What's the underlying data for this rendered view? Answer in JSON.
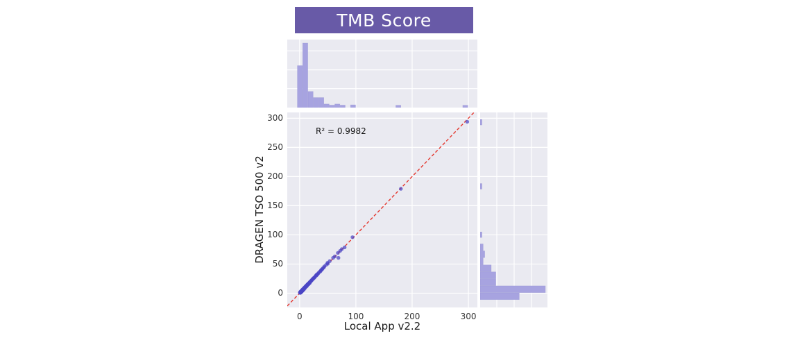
{
  "page": {
    "background": "#ffffff"
  },
  "chart_data": {
    "type": "scatter",
    "variant": "jointplot-with-marginal-histograms",
    "title": "TMB Score",
    "xlabel": "Local App v2.2",
    "ylabel": "DRAGEN TSO 500 v2",
    "annotation": "R² = 0.9982",
    "xlim": [
      -22,
      316
    ],
    "ylim": [
      -24.5,
      310
    ],
    "xticks": [
      0,
      100,
      200,
      300
    ],
    "yticks": [
      0,
      50,
      100,
      150,
      200,
      250,
      300
    ],
    "grid": true,
    "legend": "none",
    "colors": {
      "banner_bg": "#685aa7",
      "banner_text": "#ffffff",
      "panel_bg": "#eaeaf1",
      "gridline": "#ffffff",
      "bar": "#a7a3e0",
      "bar_edge": "#8f8bd0",
      "point": "#4b45c5",
      "identity_line": "#e4372e"
    },
    "identity_line": {
      "style": "dashed",
      "color": "#e4372e",
      "from": -22,
      "to": 312
    },
    "points": [
      [
        298,
        294
      ],
      [
        180,
        179
      ],
      [
        94,
        96
      ],
      [
        80,
        78.5
      ],
      [
        75,
        75.5
      ],
      [
        72,
        72.5
      ],
      [
        68,
        69
      ],
      [
        69,
        60.5
      ],
      [
        62.5,
        63
      ],
      [
        59.5,
        60.5
      ],
      [
        53.5,
        55
      ],
      [
        49.5,
        52
      ],
      [
        50,
        50.5
      ],
      [
        47,
        48.5
      ],
      [
        44,
        46
      ],
      [
        43,
        44
      ],
      [
        41,
        42.5
      ],
      [
        40,
        41
      ],
      [
        39,
        40
      ],
      [
        38,
        39.5
      ],
      [
        37,
        37.5
      ],
      [
        36,
        37
      ],
      [
        34,
        35
      ],
      [
        33,
        34
      ],
      [
        32,
        32.5
      ],
      [
        31,
        32
      ],
      [
        30,
        31.5
      ],
      [
        30,
        30.5
      ],
      [
        29,
        30
      ],
      [
        28,
        29
      ],
      [
        27,
        27.5
      ],
      [
        26,
        26.5
      ],
      [
        25,
        26
      ],
      [
        24,
        25
      ],
      [
        24,
        24.5
      ],
      [
        23,
        24
      ],
      [
        22,
        23
      ],
      [
        22,
        22.5
      ],
      [
        21,
        21.5
      ],
      [
        20,
        21
      ],
      [
        20,
        20.5
      ],
      [
        19,
        19.5
      ],
      [
        18,
        19
      ],
      [
        18,
        17.3
      ],
      [
        17,
        17.5
      ],
      [
        16,
        17
      ],
      [
        16,
        15.3
      ],
      [
        15,
        16
      ],
      [
        15,
        15.5
      ],
      [
        14,
        15
      ],
      [
        14,
        14.5
      ],
      [
        13,
        14
      ],
      [
        13,
        12.3
      ],
      [
        12,
        13
      ],
      [
        12,
        12.5
      ],
      [
        11,
        12
      ],
      [
        11,
        11.5
      ],
      [
        10,
        11
      ],
      [
        10,
        9.3
      ],
      [
        9,
        10
      ],
      [
        9,
        9.5
      ],
      [
        8,
        9
      ],
      [
        8,
        8.5
      ],
      [
        7,
        8
      ],
      [
        7,
        7.5
      ],
      [
        6,
        7
      ],
      [
        6,
        6.5
      ],
      [
        5,
        6
      ],
      [
        5,
        5.5
      ],
      [
        4,
        5
      ],
      [
        4,
        4.5
      ],
      [
        3,
        4
      ],
      [
        3,
        3.5
      ],
      [
        2,
        3
      ],
      [
        2,
        2.5
      ],
      [
        1,
        2
      ],
      [
        1,
        1.5
      ],
      [
        0.5,
        1
      ],
      [
        0.8,
        0.4
      ],
      [
        1.5,
        0.8
      ],
      [
        2.5,
        1.8
      ],
      [
        3.5,
        2.8
      ],
      [
        4.5,
        3.8
      ],
      [
        5.5,
        4.8
      ],
      [
        6.5,
        5.8
      ],
      [
        7.5,
        6.8
      ],
      [
        9.5,
        8.8
      ],
      [
        12.5,
        11.8
      ],
      [
        2,
        1
      ],
      [
        3,
        2
      ],
      [
        4,
        3
      ],
      [
        5,
        4
      ],
      [
        6,
        5
      ],
      [
        8,
        7
      ],
      [
        10,
        10.5
      ],
      [
        13,
        13.5
      ],
      [
        16,
        16.5
      ],
      [
        18,
        18.5
      ]
    ],
    "top_histogram": {
      "orientation": "vertical",
      "axis": "x (Local App v2.2)",
      "bins": [
        {
          "x0": -4,
          "x1": 5.5,
          "h": 0.65
        },
        {
          "x0": 5.5,
          "x1": 15,
          "h": 1.0
        },
        {
          "x0": 15,
          "x1": 24.5,
          "h": 0.25
        },
        {
          "x0": 24.5,
          "x1": 34,
          "h": 0.155
        },
        {
          "x0": 34,
          "x1": 43.5,
          "h": 0.155
        },
        {
          "x0": 43.5,
          "x1": 53,
          "h": 0.055
        },
        {
          "x0": 53,
          "x1": 62.5,
          "h": 0.038
        },
        {
          "x0": 62.5,
          "x1": 72,
          "h": 0.055
        },
        {
          "x0": 72,
          "x1": 81.5,
          "h": 0.038
        },
        {
          "x0": 90.5,
          "x1": 100,
          "h": 0.042
        },
        {
          "x0": 171,
          "x1": 180.5,
          "h": 0.036
        },
        {
          "x0": 290,
          "x1": 299.5,
          "h": 0.036
        }
      ]
    },
    "right_histogram": {
      "orientation": "horizontal",
      "axis": "y (DRAGEN TSO 500 v2)",
      "bins": [
        {
          "y0": -11.5,
          "y1": 0.5,
          "w": 0.6
        },
        {
          "y0": 0.5,
          "y1": 12.5,
          "w": 1.0
        },
        {
          "y0": 12.5,
          "y1": 24.5,
          "w": 0.24
        },
        {
          "y0": 24.5,
          "y1": 36.5,
          "w": 0.24
        },
        {
          "y0": 36.5,
          "y1": 48.5,
          "w": 0.17
        },
        {
          "y0": 48.5,
          "y1": 60.5,
          "w": 0.046
        },
        {
          "y0": 60.5,
          "y1": 72.5,
          "w": 0.07
        },
        {
          "y0": 72.5,
          "y1": 84.5,
          "w": 0.046
        },
        {
          "y0": 95,
          "y1": 105,
          "w": 0.028
        },
        {
          "y0": 178,
          "y1": 188,
          "w": 0.028
        },
        {
          "y0": 288,
          "y1": 298,
          "w": 0.028
        }
      ]
    }
  }
}
